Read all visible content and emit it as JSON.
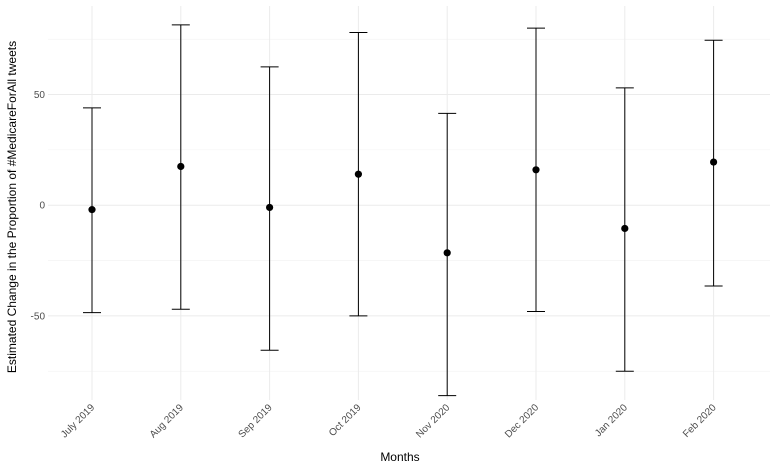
{
  "chart_data": {
    "type": "scatter",
    "subtype": "point-with-error-bars",
    "xlabel": "Months",
    "ylabel": "Estimated Change in the Proportion of #MedicareForAll tweets",
    "categories": [
      "July 2019",
      "Aug 2019",
      "Sep 2019",
      "Oct 2019",
      "Nov 2020",
      "Dec 2020",
      "Jan 2020",
      "Feb 2020"
    ],
    "estimate": [
      -2,
      17.5,
      -1,
      14,
      -21.5,
      16,
      -10.5,
      19.5
    ],
    "lower": [
      -48.5,
      -47,
      -65.5,
      -50,
      -86,
      -48,
      -75,
      -36.5
    ],
    "upper": [
      44,
      81.5,
      62.5,
      78,
      41.5,
      80,
      53,
      74.5
    ],
    "ylim": [
      -88,
      90
    ],
    "yticks": [
      -50,
      0,
      50
    ],
    "grid": true,
    "colors": {
      "point": "#000000",
      "errorbar": "#000000",
      "grid": "#ebebeb",
      "background": "#ffffff"
    }
  }
}
